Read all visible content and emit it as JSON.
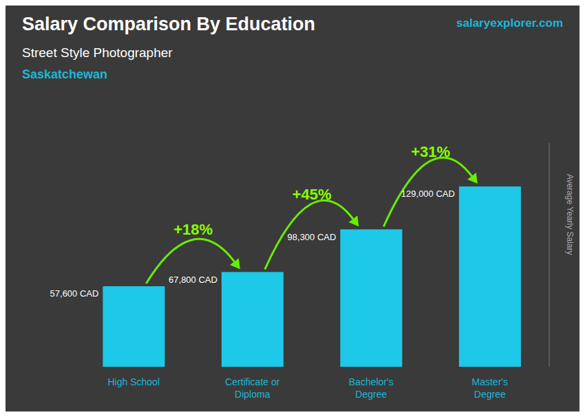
{
  "chart_data": {
    "type": "bar",
    "title": "Salary Comparison By Education",
    "subtitle": [
      "Street Style Photographer",
      "Saskatchewan"
    ],
    "y_label": "Average Yearly Salary",
    "categories": [
      "High School",
      "Certificate or\nDiploma",
      "Bachelor's\nDegree",
      "Master's\nDegree"
    ],
    "values": [
      57600,
      67800,
      98300,
      129000
    ],
    "value_labels": [
      "57,600 CAD",
      "67,800 CAD",
      "98,300 CAD",
      "129,000 CAD"
    ],
    "data_labels": true,
    "color": "#1ec8e8",
    "ylim": [
      0,
      160000
    ],
    "tick_labels": "x",
    "grid": false,
    "annotations": [
      {
        "text": "+18%",
        "between": [
          "High School",
          "Certificate or\nDiploma"
        ]
      },
      {
        "text": "+45%",
        "between": [
          "Certificate or\nDiploma",
          "Bachelor's\nDegree"
        ]
      },
      {
        "text": "+31%",
        "between": [
          "Bachelor's\nDegree",
          "Master's\nDegree"
        ]
      },
      {
        "text": "salaryexplorer.com"
      }
    ]
  }
}
